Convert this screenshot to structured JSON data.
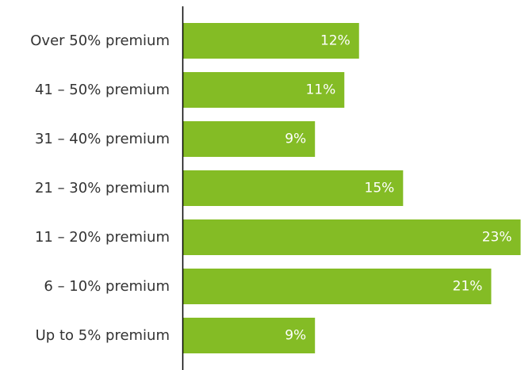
{
  "chart_data": {
    "type": "bar",
    "orientation": "horizontal",
    "categories": [
      "Over 50% premium",
      "41 – 50% premium",
      "31 – 40% premium",
      "21 – 30% premium",
      "11 – 20% premium",
      "6 – 10% premium",
      "Up to 5% premium"
    ],
    "values": [
      12,
      11,
      9,
      15,
      23,
      21,
      9
    ],
    "value_labels": [
      "12%",
      "11%",
      "9%",
      "15%",
      "23%",
      "21%",
      "9%"
    ],
    "title": "",
    "xlabel": "",
    "ylabel": "",
    "xlim": [
      0,
      23
    ],
    "grid": false,
    "legend": "none",
    "bar_color": "#84BC25",
    "label_color": "#ffffff",
    "axis_color": "#000000"
  }
}
